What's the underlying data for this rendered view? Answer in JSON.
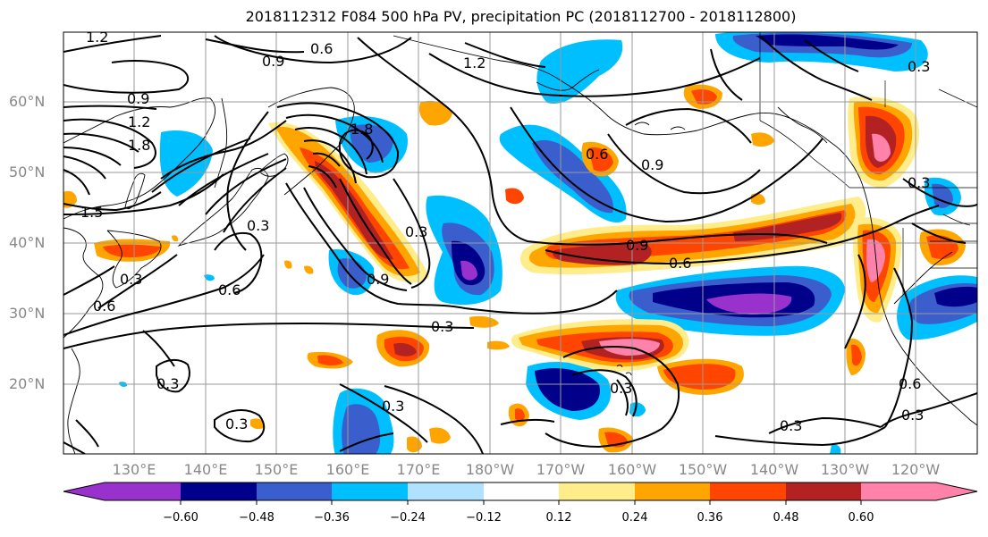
{
  "title": "2018112312 F084 500 hPa PV, precipitation PC (2018112700 - 2018112800)",
  "lat_labels": [
    "60°N",
    "50°N",
    "40°N",
    "30°N",
    "20°N"
  ],
  "lon_labels": [
    "130°E",
    "140°E",
    "150°E",
    "160°E",
    "170°E",
    "180°W",
    "170°W",
    "160°W",
    "150°W",
    "140°W",
    "130°W",
    "120°W"
  ],
  "contour_labels": [
    "1.2",
    "0.6",
    "0.9",
    "1.2",
    "0.9",
    "1.2",
    "1.8",
    "1.5",
    "1.8",
    "0.6",
    "0.9",
    "0.3",
    "0.9",
    "0.6",
    "0.6",
    "0.3",
    "0.6",
    "0.9",
    "0.3",
    "0.3",
    "0.3",
    "0.3",
    "0.3",
    "0.6",
    "0.3",
    "0.3",
    "0.3",
    "0.3",
    "0.3"
  ],
  "colorbar": {
    "ticks": [
      "−0.60",
      "−0.48",
      "−0.36",
      "−0.24",
      "−0.12",
      "0.12",
      "0.24",
      "0.36",
      "0.48",
      "0.60"
    ],
    "colors": [
      "#9932cc",
      "#00008b",
      "#3a5fcd",
      "#00bfff",
      "#b0e2ff",
      "#ffffff",
      "#ffec8b",
      "#ffa500",
      "#ff4500",
      "#b22222",
      "#ff82ab"
    ]
  }
}
